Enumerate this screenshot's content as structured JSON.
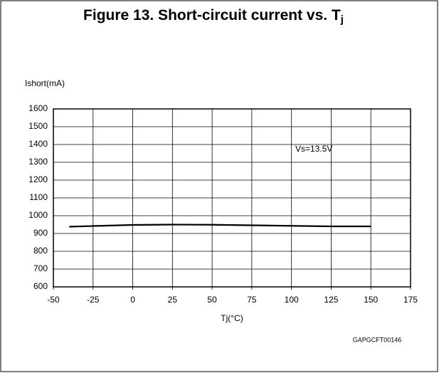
{
  "chart_data": {
    "type": "line",
    "title": "Figure 13. Short-circuit current vs. T",
    "title_subscript": "j",
    "y_label": "Ishort(mA)",
    "x_label": "Tj(°C)",
    "annotation": "Vs=13.5V",
    "code": "GAPGCFT00146",
    "x": [
      -40,
      -25,
      0,
      25,
      50,
      75,
      100,
      125,
      150
    ],
    "series": [
      {
        "name": "Vs=13.5V",
        "color": "#000000",
        "values": [
          938,
          942,
          948,
          950,
          949,
          946,
          943,
          940,
          940
        ]
      }
    ],
    "xlim": [
      -50,
      175
    ],
    "xticks": [
      -50,
      -25,
      0,
      25,
      50,
      75,
      100,
      125,
      150,
      175
    ],
    "ylim": [
      600,
      1600
    ],
    "yticks": [
      600,
      700,
      800,
      900,
      1000,
      1100,
      1200,
      1300,
      1400,
      1500,
      1600
    ],
    "grid": true
  }
}
